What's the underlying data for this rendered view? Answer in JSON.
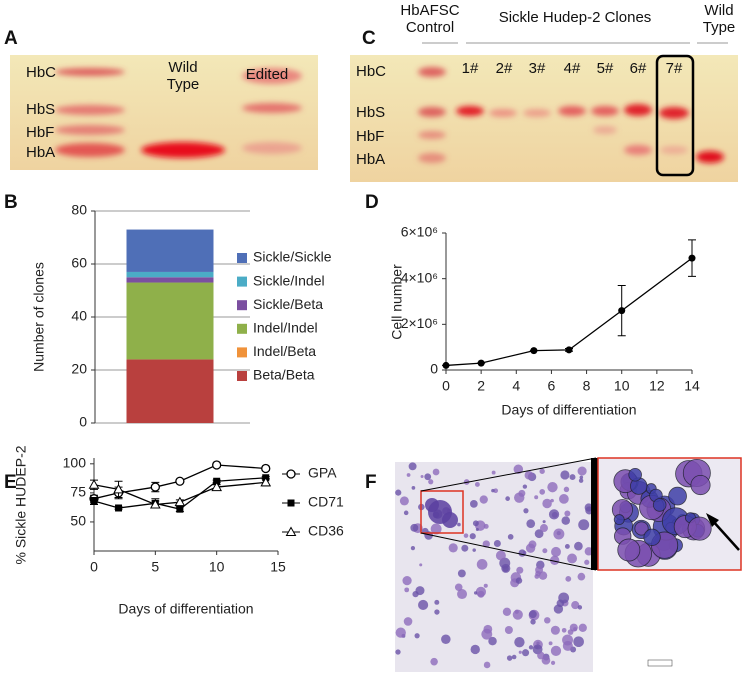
{
  "panel_labels": [
    "A",
    "B",
    "C",
    "D",
    "E",
    "F"
  ],
  "gel_a": {
    "band_labels": [
      "HbC",
      "HbS",
      "HbF",
      "HbA"
    ],
    "lane_labels": [
      "Wild Type",
      "Edited"
    ]
  },
  "gel_c": {
    "group_labels": [
      "HbAFSC Control",
      "Sickle Hudep-2 Clones",
      "Wild Type"
    ],
    "band_labels": [
      "HbC",
      "HbS",
      "HbF",
      "HbA"
    ],
    "lane_labels": [
      "1#",
      "2#",
      "3#",
      "4#",
      "5#",
      "6#",
      "7#"
    ]
  },
  "chart_data": [
    {
      "type": "stacked_bar",
      "ylabel": "Number of clones",
      "categories": [
        null
      ],
      "series": [
        {
          "name": "Beta/Beta",
          "color": "#b9403e",
          "values": [
            24
          ]
        },
        {
          "name": "Indel/Beta",
          "color": "#f0923a",
          "values": [
            0
          ]
        },
        {
          "name": "Indel/Indel",
          "color": "#8fb04a",
          "values": [
            29
          ]
        },
        {
          "name": "Sickle/Beta",
          "color": "#7b4fa0",
          "values": [
            2
          ]
        },
        {
          "name": "Sickle/Indel",
          "color": "#4bacc6",
          "values": [
            2
          ]
        },
        {
          "name": "Sickle/Sickle",
          "color": "#4f6fb7",
          "values": [
            16
          ]
        }
      ],
      "ylim": [
        0,
        80
      ],
      "yticks": [
        0,
        20,
        40,
        60,
        80
      ],
      "grid": true,
      "legend": "right"
    },
    {
      "type": "line",
      "xlabel": "Days of differentiation",
      "ylabel": "Cell number",
      "x": [
        0,
        2,
        5,
        7,
        10,
        14
      ],
      "values": [
        200000,
        300000,
        850000,
        880000,
        2600000,
        4900000
      ],
      "errors": [
        0,
        0,
        0,
        60000,
        1100000,
        800000
      ],
      "color": "#000000",
      "xlim": [
        0,
        14
      ],
      "xticks": [
        0,
        2,
        4,
        6,
        8,
        10,
        12,
        14
      ],
      "ylim": [
        0,
        6000000
      ],
      "yticks": [
        0,
        {
          "value": 2000000,
          "label": "2×10⁶"
        },
        {
          "value": 4000000,
          "label": "4×10⁶"
        },
        {
          "value": 6000000,
          "label": "6×10⁶"
        }
      ]
    },
    {
      "type": "line",
      "xlabel": "Days of differentiation",
      "ylabel": "% Sickle HUDEP-2",
      "x": [
        0,
        2,
        5,
        7,
        10,
        14
      ],
      "series": [
        {
          "name": "GPA",
          "color": "#000000",
          "marker": "circle",
          "values": [
            70,
            75,
            80,
            85,
            99,
            96
          ],
          "errors": [
            3,
            5,
            4,
            1,
            1,
            1
          ]
        },
        {
          "name": "CD71",
          "color": "#000000",
          "marker": "square",
          "values": [
            68,
            62,
            66,
            61,
            85,
            88
          ],
          "errors": [
            3,
            1,
            4,
            2,
            1,
            1
          ]
        },
        {
          "name": "CD36",
          "color": "#000000",
          "marker": "triangle",
          "values": [
            82,
            78,
            65,
            67,
            80,
            84
          ],
          "errors": [
            4,
            7,
            3,
            2,
            2,
            3
          ]
        }
      ],
      "xlim": [
        0,
        15
      ],
      "xticks": [
        0,
        5,
        10,
        15
      ],
      "ylim": [
        25,
        105
      ],
      "yticks": [
        50,
        75,
        100
      ],
      "legend": "right"
    }
  ]
}
